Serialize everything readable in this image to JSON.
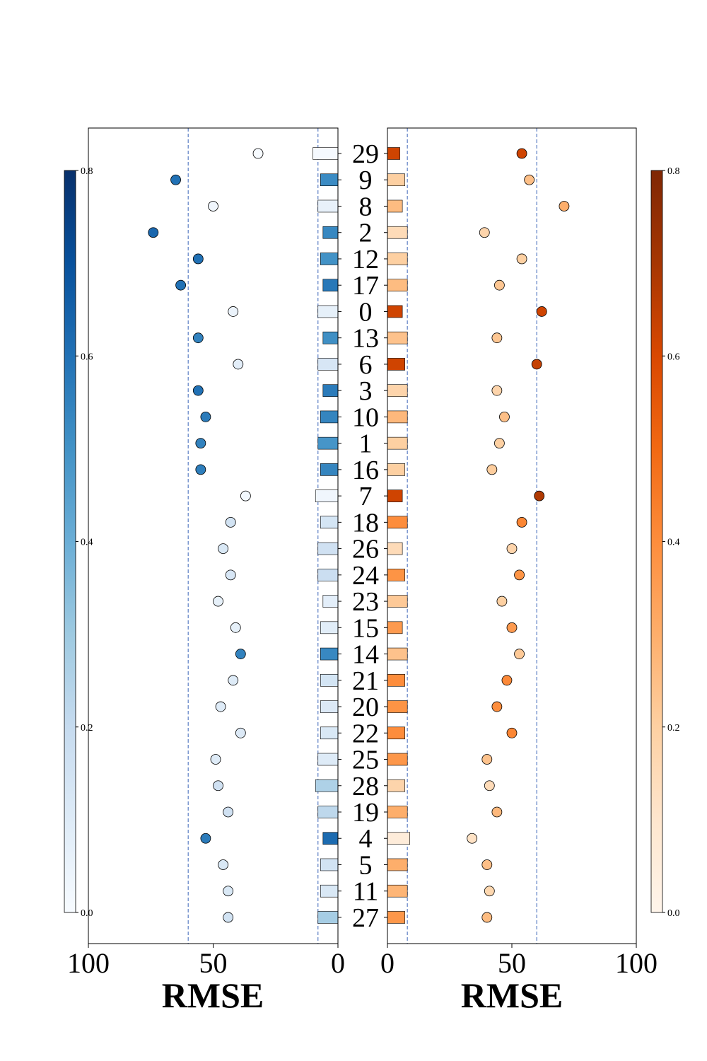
{
  "chart_data": {
    "type": "scatter",
    "categories": [
      "29",
      "9",
      "8",
      "2",
      "12",
      "17",
      "0",
      "13",
      "6",
      "3",
      "10",
      "1",
      "16",
      "7",
      "18",
      "26",
      "24",
      "23",
      "15",
      "14",
      "21",
      "20",
      "22",
      "25",
      "28",
      "19",
      "4",
      "5",
      "11",
      "27"
    ],
    "xlim": [
      0,
      100
    ],
    "x_ticks": [
      "100",
      "50",
      "0",
      "0",
      "50",
      "100"
    ],
    "left_panel": {
      "xlabel": "RMSE",
      "x_inverted": true,
      "colormap": "Blues",
      "dashed_lines": [
        60,
        8
      ],
      "scatter_rmse": [
        32,
        65,
        50,
        74,
        56,
        63,
        42,
        56,
        40,
        56,
        53,
        55,
        55,
        37,
        43,
        46,
        43,
        48,
        41,
        39,
        42,
        47,
        39,
        49,
        48,
        44,
        53,
        46,
        44,
        44
      ],
      "scatter_color_value": [
        0.0,
        0.6,
        0.03,
        0.63,
        0.6,
        0.6,
        0.05,
        0.55,
        0.08,
        0.6,
        0.57,
        0.55,
        0.56,
        0.02,
        0.15,
        0.12,
        0.13,
        0.07,
        0.07,
        0.55,
        0.1,
        0.1,
        0.11,
        0.1,
        0.16,
        0.16,
        0.57,
        0.12,
        0.12,
        0.15
      ],
      "bar_length": [
        10,
        7,
        8,
        6,
        7,
        6,
        8,
        6,
        8,
        6,
        7,
        8,
        7,
        9,
        7,
        8,
        8,
        6,
        7,
        7,
        7,
        7,
        7,
        8,
        9,
        8,
        6,
        7,
        7,
        8
      ],
      "bar_color_value": [
        0.01,
        0.52,
        0.06,
        0.53,
        0.5,
        0.58,
        0.07,
        0.51,
        0.13,
        0.57,
        0.54,
        0.49,
        0.54,
        0.03,
        0.14,
        0.16,
        0.18,
        0.08,
        0.09,
        0.53,
        0.14,
        0.11,
        0.12,
        0.1,
        0.26,
        0.22,
        0.62,
        0.15,
        0.12,
        0.28
      ]
    },
    "right_panel": {
      "xlabel": "RMSE",
      "x_inverted": false,
      "colormap": "Oranges",
      "dashed_lines": [
        8,
        60
      ],
      "scatter_rmse": [
        54,
        57,
        71,
        39,
        54,
        45,
        62,
        44,
        60,
        44,
        47,
        45,
        42,
        61,
        54,
        50,
        53,
        46,
        50,
        53,
        48,
        44,
        50,
        40,
        41,
        44,
        34,
        40,
        41,
        40
      ],
      "scatter_color_value": [
        0.62,
        0.25,
        0.3,
        0.18,
        0.2,
        0.23,
        0.62,
        0.23,
        0.64,
        0.18,
        0.25,
        0.2,
        0.21,
        0.68,
        0.42,
        0.18,
        0.38,
        0.2,
        0.36,
        0.22,
        0.41,
        0.4,
        0.42,
        0.24,
        0.15,
        0.27,
        0.12,
        0.25,
        0.17,
        0.26
      ],
      "bar_length": [
        5,
        7,
        6,
        8,
        8,
        8,
        6,
        8,
        7,
        8,
        8,
        8,
        7,
        6,
        8,
        6,
        7,
        8,
        6,
        8,
        7,
        8,
        7,
        8,
        7,
        8,
        9,
        8,
        8,
        7
      ],
      "bar_color_value": [
        0.62,
        0.2,
        0.26,
        0.15,
        0.2,
        0.26,
        0.62,
        0.24,
        0.62,
        0.18,
        0.27,
        0.2,
        0.2,
        0.62,
        0.4,
        0.15,
        0.38,
        0.22,
        0.36,
        0.24,
        0.4,
        0.38,
        0.4,
        0.37,
        0.18,
        0.3,
        0.06,
        0.3,
        0.28,
        0.37
      ]
    },
    "colorbar": {
      "range": [
        0,
        0.8
      ],
      "ticks": [
        "0.0",
        "0.2",
        "0.4",
        "0.6",
        "0.8"
      ],
      "left_colormap": "Blues",
      "right_colormap": "Oranges"
    },
    "line_color": "#5b7ec4"
  }
}
